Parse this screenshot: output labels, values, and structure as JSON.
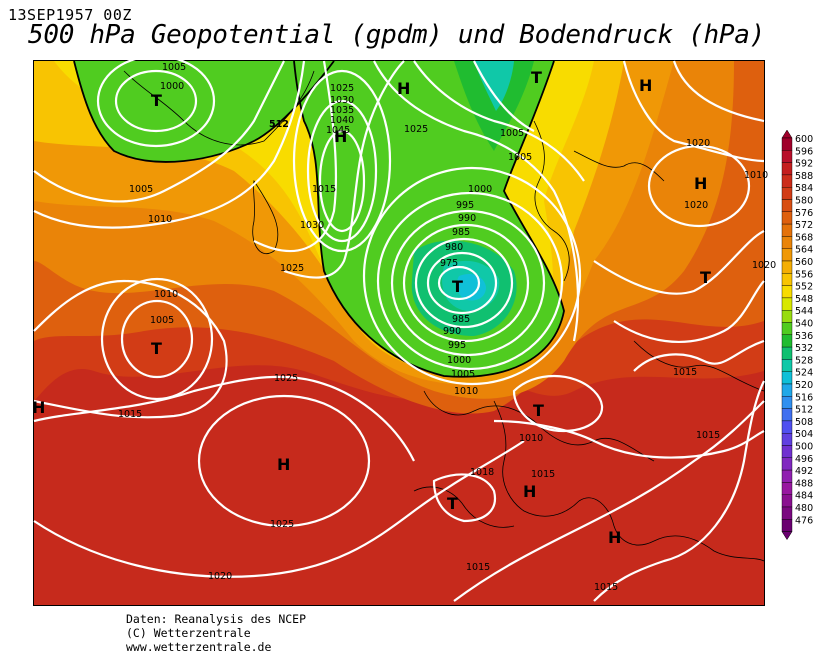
{
  "header": {
    "date_label": "13SEP1957 00Z",
    "title": "500 hPa Geopotential (gpdm) und Bodendruck (hPa)"
  },
  "map": {
    "centers": [
      {
        "type": "T",
        "label": "T"
      },
      {
        "type": "H",
        "label": "H"
      },
      {
        "type": "H",
        "label": "H"
      },
      {
        "type": "T",
        "label": "T"
      },
      {
        "type": "H",
        "label": "H"
      },
      {
        "type": "H",
        "label": "H"
      },
      {
        "type": "T",
        "label": "T"
      },
      {
        "type": "T",
        "label": "T"
      },
      {
        "type": "T",
        "label": "T"
      },
      {
        "type": "T",
        "label": "T"
      },
      {
        "type": "H",
        "label": "H"
      },
      {
        "type": "T",
        "label": "T"
      },
      {
        "type": "H",
        "label": "H"
      },
      {
        "type": "H",
        "label": "H"
      },
      {
        "type": "H",
        "label": "H"
      }
    ],
    "isobar_labels": [
      "1005",
      "1000",
      "1025",
      "1030",
      "1035",
      "1040",
      "1045",
      "1015",
      "1030",
      "1025",
      "1025",
      "1005",
      "1005",
      "1000",
      "995",
      "990",
      "985",
      "980",
      "975",
      "985",
      "990",
      "995",
      "1000",
      "1005",
      "1010",
      "1005",
      "1010",
      "1010",
      "1005",
      "1015",
      "1025",
      "1025",
      "1020",
      "1010",
      "1015",
      "1015",
      "1018",
      "1015",
      "1015",
      "1020",
      "1020",
      "1010",
      "1020",
      "1015"
    ],
    "contour_512": "512",
    "isobar_color": "#ffffff",
    "geopotential_outline_color": "#000000"
  },
  "colorbar": {
    "levels": [
      "600",
      "596",
      "592",
      "588",
      "584",
      "580",
      "576",
      "572",
      "568",
      "564",
      "560",
      "556",
      "552",
      "548",
      "544",
      "540",
      "536",
      "532",
      "528",
      "524",
      "520",
      "516",
      "512",
      "508",
      "504",
      "500",
      "496",
      "492",
      "488",
      "484",
      "480",
      "476"
    ],
    "colors": [
      "#a0002a",
      "#b80f2a",
      "#c41e1e",
      "#cc2d1a",
      "#d23c16",
      "#d84e12",
      "#de600e",
      "#e4720a",
      "#ea8408",
      "#f09806",
      "#f4ae04",
      "#f8c402",
      "#f8dc00",
      "#d8e800",
      "#98dc10",
      "#50cc20",
      "#20bc30",
      "#10c070",
      "#10c8a8",
      "#10c0d8",
      "#20a8e8",
      "#3090f0",
      "#4070f0",
      "#5050f0",
      "#6040e0",
      "#7030d0",
      "#8028c0",
      "#9020b0",
      "#9818a0",
      "#8a1090",
      "#7a0880",
      "#6a0070"
    ]
  },
  "credits": {
    "line1": "Daten: Reanalysis des NCEP",
    "line2": "(C) Wetterzentrale",
    "line3": "www.wetterzentrale.de"
  }
}
